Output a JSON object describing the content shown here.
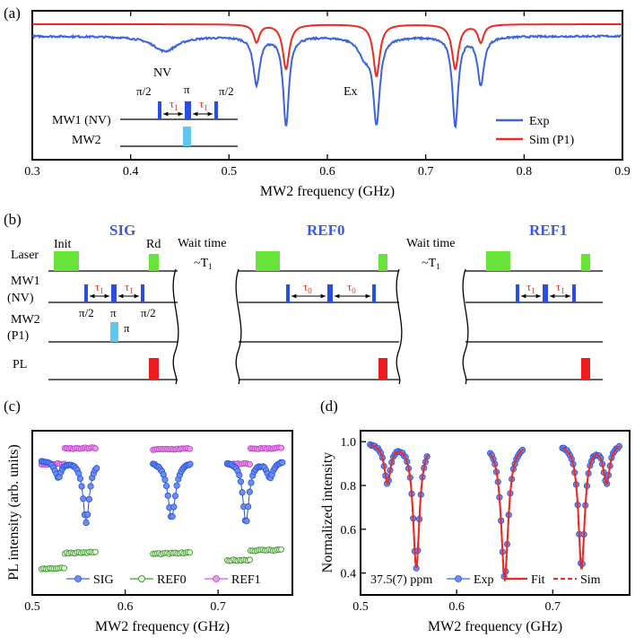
{
  "colors": {
    "exp_blue": "#3a63e0",
    "sim_red": "#ec2a22",
    "pulse_blue": "#2a4fe0",
    "pulse_cyan": "#5fc8ef",
    "laser_green": "#66e43a",
    "pl_red": "#ee1c1c",
    "ref0_green": "#3c9b28",
    "ref1_magenta": "#d05ad8",
    "sequence_title": "#3c5ad7"
  },
  "panel_a": {
    "label": "(a)",
    "annotations": {
      "nv": "NV",
      "ex": "Ex"
    },
    "inset": {
      "rows": [
        "MW1 (NV)",
        "MW2"
      ],
      "pulse_labels": [
        "π/2",
        "π",
        "π/2"
      ],
      "tau": "τ",
      "tau_sub": "1"
    }
  },
  "panel_b": {
    "label": "(b)",
    "row_labels": [
      "Laser",
      "MW1",
      "(NV)",
      "MW2",
      "(P1)",
      "PL"
    ],
    "blocks": [
      {
        "title": "SIG",
        "init": "Init",
        "readout": "Rd",
        "tau_sub": "1",
        "pulse_labels": [
          "π/2",
          "π",
          "π/2"
        ],
        "mw2_pulse": "π"
      },
      {
        "title": "REF0",
        "tau_sub": "0"
      },
      {
        "title": "REF1",
        "tau_sub": "1"
      }
    ],
    "wait": {
      "label": "Wait time",
      "value": "~T",
      "sub": "1"
    }
  },
  "panel_c": {
    "label": "(c)"
  },
  "panel_d": {
    "label": "(d)"
  },
  "chart_data": [
    {
      "type": "line",
      "panel": "a",
      "xlabel": "MW2 frequency (GHz)",
      "ylabel": "",
      "xlim": [
        0.3,
        0.9
      ],
      "ylim": [
        0.0,
        1.0
      ],
      "x_ticks": [
        "0.3",
        "0.4",
        "0.5",
        "0.6",
        "0.7",
        "0.8",
        "0.9"
      ],
      "legend": {
        "position": "bottom-right",
        "entries": [
          "Exp",
          "Sim (P1)"
        ]
      },
      "series": [
        {
          "name": "Exp",
          "baseline": 0.83,
          "noise": 0.012,
          "dips": [
            {
              "x": 0.435,
              "depth": 0.1,
              "width": 0.015
            },
            {
              "x": 0.528,
              "depth": 0.32,
              "width": 0.004
            },
            {
              "x": 0.558,
              "depth": 0.6,
              "width": 0.0035
            },
            {
              "x": 0.638,
              "depth": 0.12,
              "width": 0.008
            },
            {
              "x": 0.65,
              "depth": 0.56,
              "width": 0.004
            },
            {
              "x": 0.73,
              "depth": 0.6,
              "width": 0.0035
            },
            {
              "x": 0.756,
              "depth": 0.32,
              "width": 0.004
            }
          ]
        },
        {
          "name": "Sim (P1)",
          "baseline": 0.91,
          "noise": 0,
          "dips": [
            {
              "x": 0.528,
              "depth": 0.12,
              "width": 0.0035
            },
            {
              "x": 0.558,
              "depth": 0.3,
              "width": 0.004
            },
            {
              "x": 0.65,
              "depth": 0.35,
              "width": 0.004
            },
            {
              "x": 0.73,
              "depth": 0.3,
              "width": 0.004
            },
            {
              "x": 0.756,
              "depth": 0.12,
              "width": 0.0035
            }
          ]
        }
      ]
    },
    {
      "type": "scatter",
      "panel": "c",
      "xlabel": "MW2 frequency (GHz)",
      "ylabel": "PL intensity (arb. units)",
      "xlim": [
        0.5,
        0.78
      ],
      "ylim": [
        0.0,
        1.0
      ],
      "x_ticks": [
        "0.5",
        "0.6",
        "0.7"
      ],
      "legend": {
        "position": "bottom",
        "entries": [
          "SIG",
          "REF0",
          "REF1"
        ]
      },
      "segments": [
        [
          0.51,
          0.57
        ],
        [
          0.63,
          0.67
        ],
        [
          0.71,
          0.77
        ]
      ],
      "series": [
        {
          "name": "SIG",
          "baseline": 0.82,
          "dips": [
            {
              "x": 0.528,
              "depth": 0.1,
              "width": 0.004
            },
            {
              "x": 0.558,
              "depth": 0.38,
              "width": 0.004
            },
            {
              "x": 0.65,
              "depth": 0.35,
              "width": 0.005
            },
            {
              "x": 0.73,
              "depth": 0.38,
              "width": 0.004
            },
            {
              "x": 0.756,
              "depth": 0.1,
              "width": 0.004
            }
          ]
        },
        {
          "name": "REF0",
          "levels": [
            0.16,
            0.255,
            0.25,
            0.21,
            0.27
          ]
        },
        {
          "name": "REF1",
          "levels": [
            0.795,
            0.89,
            0.885,
            0.795,
            0.89
          ]
        }
      ]
    },
    {
      "type": "scatter",
      "panel": "d",
      "xlabel": "MW2 frequency (GHz)",
      "ylabel": "Normalized intensity",
      "xlim": [
        0.5,
        0.78
      ],
      "ylim": [
        0.3,
        1.05
      ],
      "x_ticks": [
        "0.5",
        "0.6",
        "0.7"
      ],
      "y_ticks": [
        "0.4",
        "0.6",
        "0.8",
        "1.0"
      ],
      "annotation": "37.5(7) ppm",
      "legend": {
        "position": "bottom",
        "entries": [
          "Exp",
          "Fit",
          "Sim"
        ]
      },
      "segments": [
        [
          0.51,
          0.57
        ],
        [
          0.635,
          0.67
        ],
        [
          0.71,
          0.77
        ]
      ],
      "series": [
        {
          "name": "Exp",
          "baseline": 1.0,
          "dips": [
            {
              "x": 0.528,
              "depth": 0.18,
              "width": 0.004
            },
            {
              "x": 0.558,
              "depth": 0.57,
              "width": 0.004
            },
            {
              "x": 0.65,
              "depth": 0.62,
              "width": 0.0045
            },
            {
              "x": 0.73,
              "depth": 0.57,
              "width": 0.004
            },
            {
              "x": 0.756,
              "depth": 0.18,
              "width": 0.004
            }
          ]
        },
        {
          "name": "Fit"
        },
        {
          "name": "Sim"
        }
      ]
    }
  ]
}
